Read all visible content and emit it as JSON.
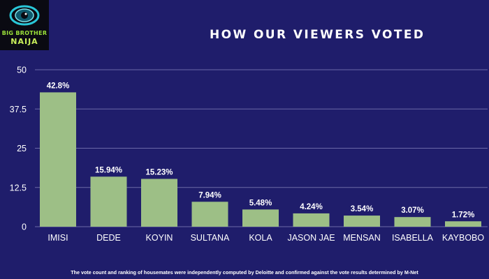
{
  "logo": {
    "line1": "BIG BROTHER",
    "line2": "NAIJA"
  },
  "title": "HOW OUR VIEWERS VOTED",
  "footnote": "The vote count and ranking of housemates were independently computed by Deloitte and confirmed against the vote results determined by M-Net",
  "colors": {
    "background": "#1f1d6b",
    "bar": "#9dbf86",
    "grid": "#6b69a8",
    "text": "#ffffff"
  },
  "chart_data": {
    "type": "bar",
    "categories": [
      "IMISI",
      "DEDE",
      "KOYIN",
      "SULTANA",
      "KOLA",
      "JASON JAE",
      "MENSAN",
      "ISABELLA",
      "KAYBOBO"
    ],
    "values": [
      42.8,
      15.94,
      15.23,
      7.94,
      5.48,
      4.24,
      3.54,
      3.07,
      1.72
    ],
    "value_labels": [
      "42.8%",
      "15.94%",
      "15.23%",
      "7.94%",
      "5.48%",
      "4.24%",
      "3.54%",
      "3.07%",
      "1.72%"
    ],
    "yticks": [
      "0",
      "12.5",
      "25",
      "37.5",
      "50"
    ],
    "ylim": [
      0,
      50
    ],
    "grid": true
  }
}
